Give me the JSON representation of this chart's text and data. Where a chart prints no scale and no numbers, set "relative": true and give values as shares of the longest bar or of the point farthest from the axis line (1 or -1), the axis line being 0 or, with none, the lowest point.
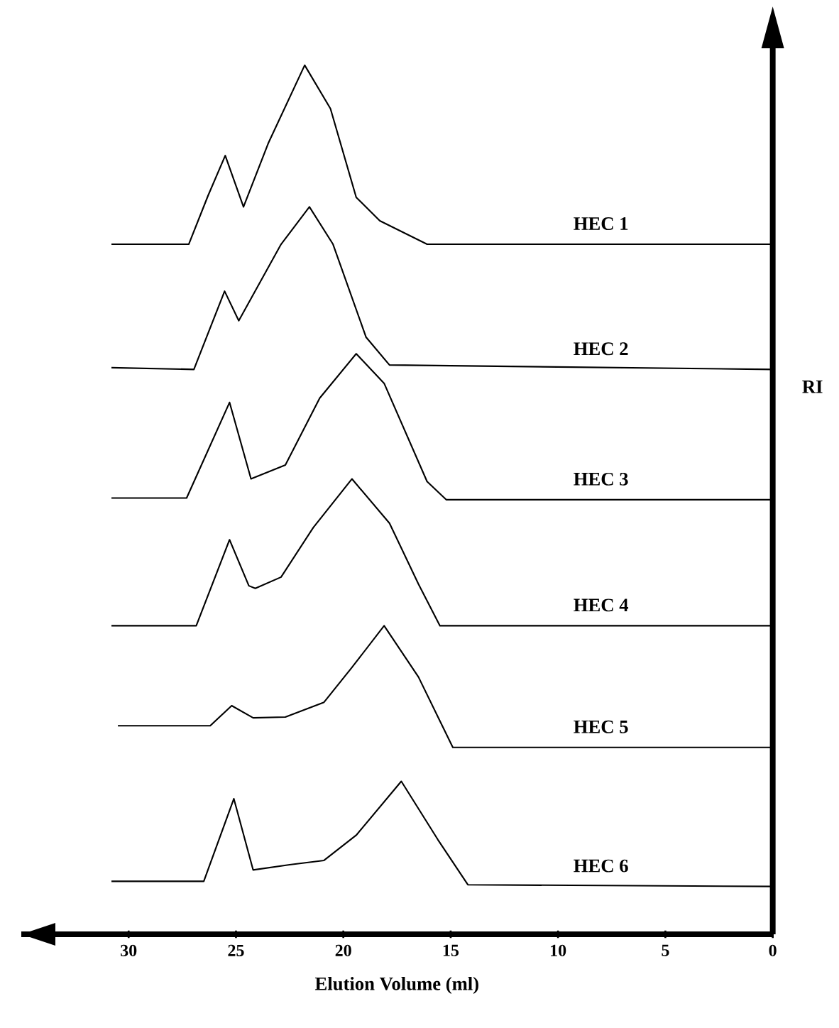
{
  "chart_data": {
    "type": "line",
    "relative": true,
    "xlabel": "Elution Volume (ml)",
    "ylabel": "RI",
    "xlim": [
      35,
      0
    ],
    "xticks": [
      30,
      25,
      20,
      15,
      10,
      5,
      0
    ],
    "marker": "none",
    "line_style": "solid",
    "grid": false,
    "series": [
      {
        "name": "HEC 1",
        "color": "#000000",
        "x": [
          30.8,
          27.2,
          26.3,
          25.5,
          24.65,
          23.5,
          21.8,
          20.6,
          19.4,
          18.3,
          16.1,
          0
        ],
        "values": [
          0.794,
          0.794,
          0.85,
          0.896,
          0.837,
          0.91,
          1.0,
          0.95,
          0.848,
          0.821,
          0.794,
          0.794
        ]
      },
      {
        "name": "HEC 2",
        "color": "#000000",
        "x": [
          30.8,
          26.96,
          25.53,
          24.87,
          22.9,
          21.58,
          20.48,
          18.94,
          17.85,
          0
        ],
        "values": [
          0.652,
          0.65,
          0.74,
          0.706,
          0.794,
          0.837,
          0.794,
          0.687,
          0.655,
          0.65
        ]
      },
      {
        "name": "HEC 3",
        "color": "#000000",
        "x": [
          30.8,
          27.3,
          25.3,
          24.3,
          22.7,
          21.1,
          19.4,
          18.1,
          16.1,
          15.2,
          0
        ],
        "values": [
          0.502,
          0.502,
          0.612,
          0.524,
          0.54,
          0.617,
          0.668,
          0.634,
          0.521,
          0.5,
          0.5
        ]
      },
      {
        "name": "HEC 4",
        "color": "#000000",
        "x": [
          30.8,
          26.85,
          25.3,
          24.4,
          24.1,
          22.9,
          21.4,
          19.6,
          17.85,
          16.5,
          15.5,
          0
        ],
        "values": [
          0.355,
          0.355,
          0.454,
          0.401,
          0.398,
          0.411,
          0.468,
          0.524,
          0.473,
          0.403,
          0.355,
          0.355
        ]
      },
      {
        "name": "HEC 5",
        "color": "#000000",
        "x": [
          30.5,
          26.2,
          25.2,
          24.2,
          22.7,
          20.9,
          19.6,
          18.1,
          16.5,
          14.9,
          0
        ],
        "values": [
          0.24,
          0.24,
          0.263,
          0.249,
          0.25,
          0.267,
          0.307,
          0.355,
          0.296,
          0.215,
          0.215
        ]
      },
      {
        "name": "HEC 6",
        "color": "#000000",
        "x": [
          30.8,
          26.5,
          25.1,
          24.2,
          22.5,
          20.9,
          19.4,
          17.3,
          15.6,
          14.2,
          0
        ],
        "values": [
          0.061,
          0.061,
          0.156,
          0.074,
          0.08,
          0.085,
          0.114,
          0.176,
          0.109,
          0.057,
          0.055
        ]
      }
    ]
  }
}
